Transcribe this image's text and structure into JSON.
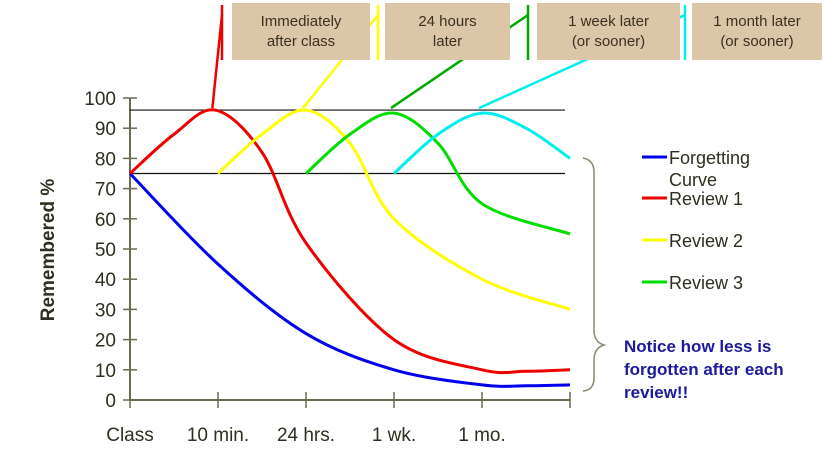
{
  "chart_data": {
    "type": "line",
    "ylabel": "Remembered %",
    "xlabel": "",
    "categories": [
      "Class",
      "10 min.",
      "24 hrs.",
      "1 wk.",
      "1 mo.",
      ""
    ],
    "ylim": [
      0,
      100
    ],
    "yticks": [
      0,
      10,
      20,
      30,
      40,
      50,
      60,
      70,
      80,
      90,
      100
    ],
    "reference_lines": [
      96,
      75
    ],
    "grid": false,
    "legend_position": "right",
    "series": [
      {
        "name": "Forgetting Curve",
        "color": "#0000ee",
        "x": [
          0,
          1,
          2,
          3,
          4,
          4.5,
          5
        ],
        "y": [
          75,
          45,
          22,
          10,
          5,
          4.7,
          5
        ]
      },
      {
        "name": "Review 1",
        "color": "#ee0000",
        "x": [
          0,
          0.5,
          0.97,
          1.5,
          2,
          3,
          4,
          4.5,
          5
        ],
        "y": [
          75,
          88,
          96,
          82,
          52,
          20,
          10,
          9.5,
          10
        ]
      },
      {
        "name": "Review 2",
        "color": "#ffff00",
        "x": [
          1,
          1.5,
          2,
          2.5,
          3,
          4,
          5
        ],
        "y": [
          75,
          88,
          96,
          85,
          60,
          40,
          30
        ]
      },
      {
        "name": "Review 3",
        "color": "#00dd00",
        "x": [
          2,
          2.5,
          3,
          3.5,
          4,
          5
        ],
        "y": [
          75,
          88,
          95,
          85,
          65,
          55
        ]
      },
      {
        "name": "",
        "color": "#00eeee",
        "x": [
          3,
          3.5,
          4,
          4.5,
          5
        ],
        "y": [
          75,
          88,
          95,
          90,
          80
        ]
      }
    ],
    "annotations": {
      "boxes": [
        "Immediately\nafter class",
        "24 hours\nlater",
        "1 week later\n(or sooner)",
        "1 month later\n(or sooner)"
      ],
      "note": "Notice how less is forgotten after each review!!"
    },
    "legend": [
      "Forgetting Curve",
      "Review 1",
      "Review 2",
      "Review 3"
    ]
  }
}
